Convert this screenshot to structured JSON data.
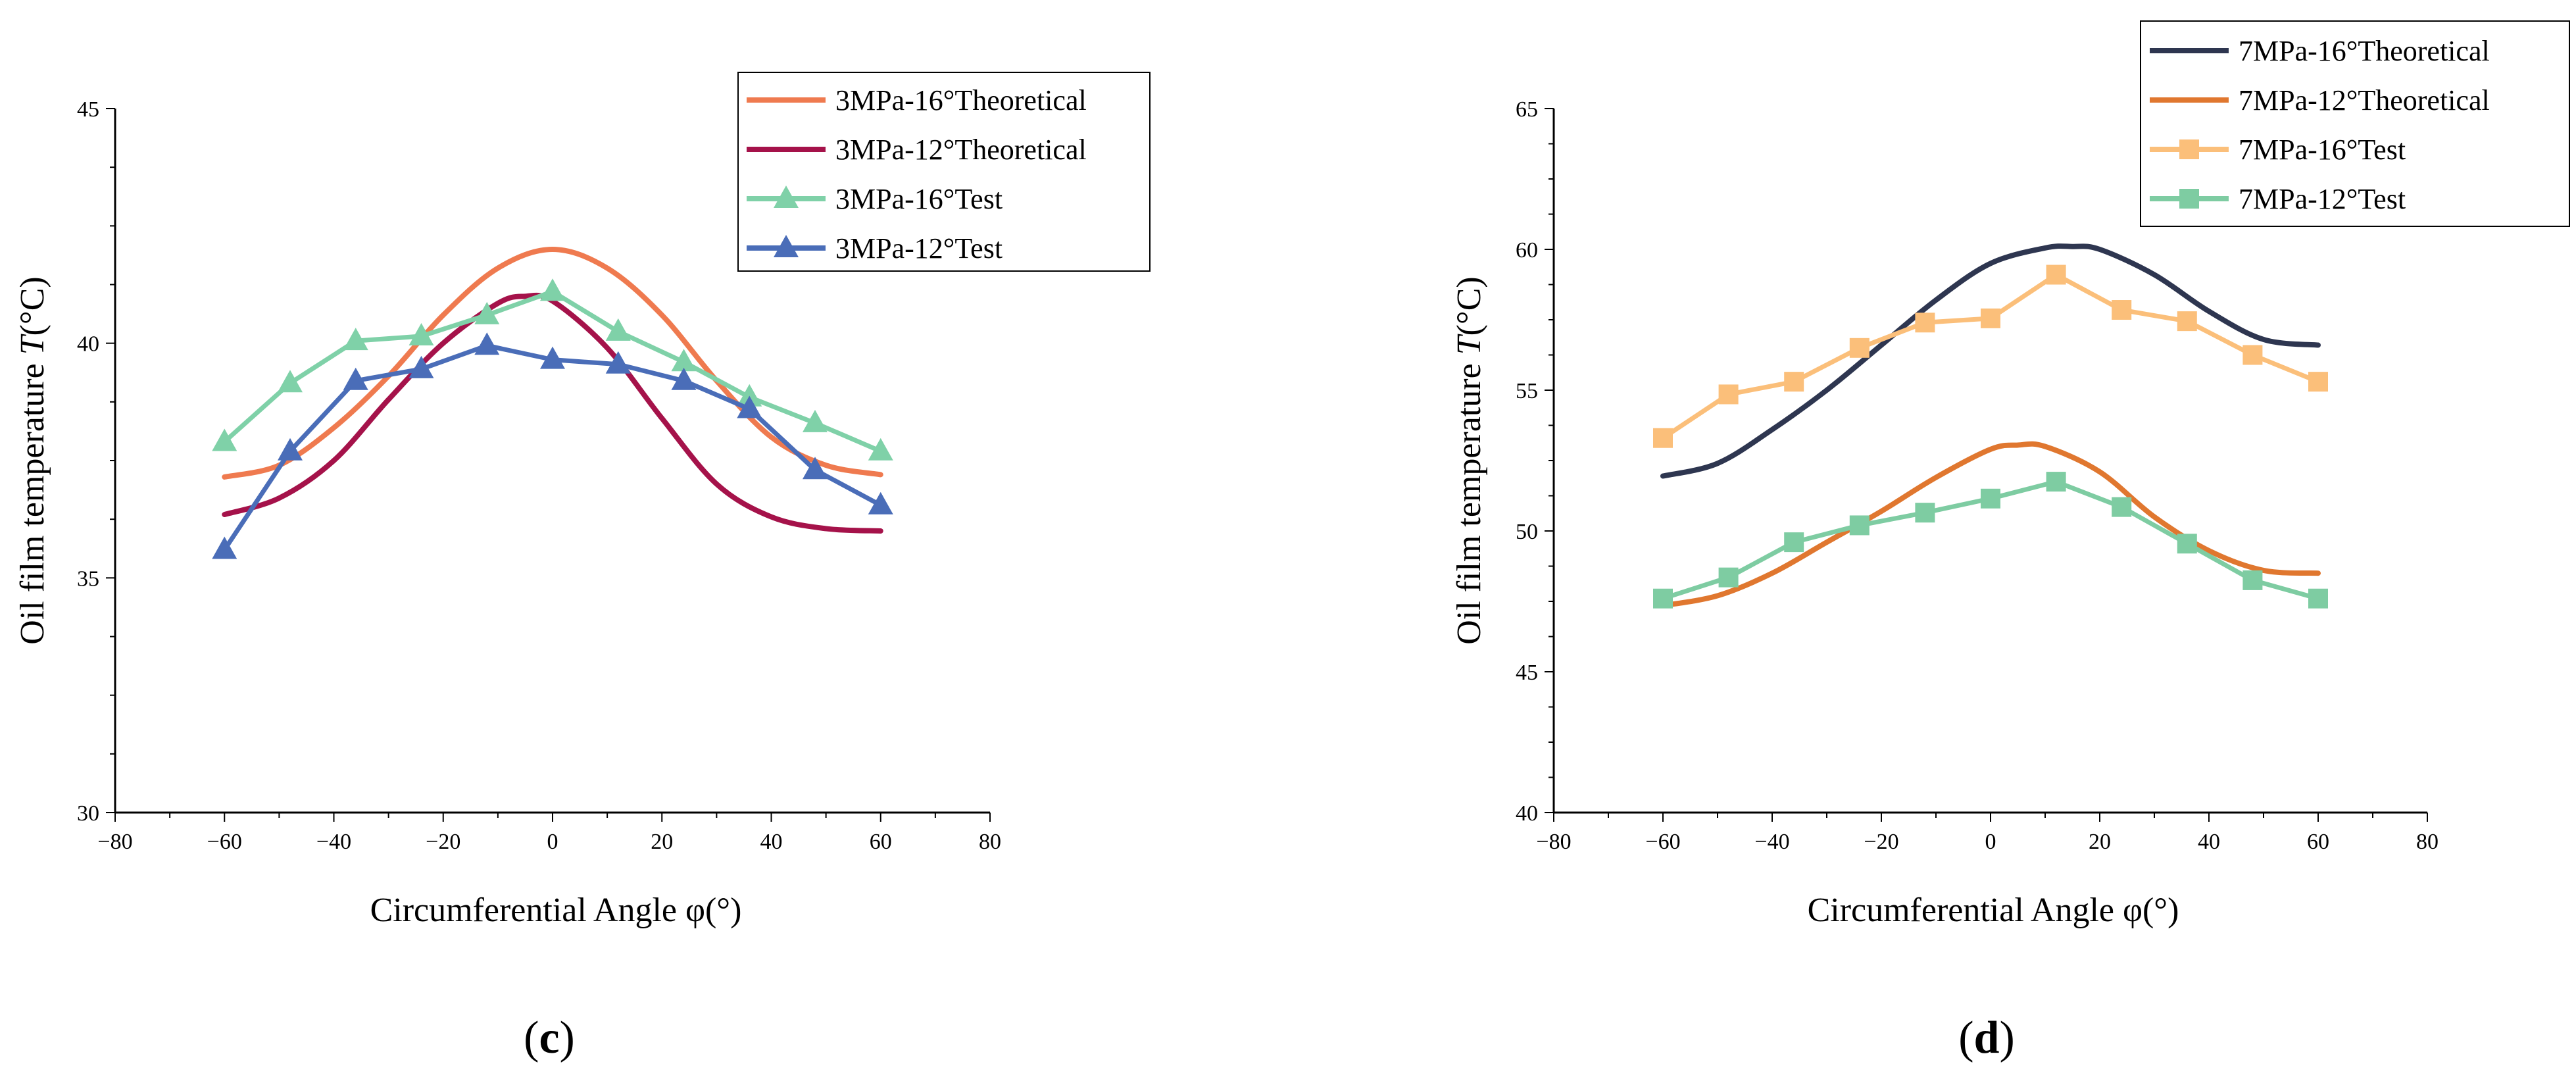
{
  "chart_data": [
    {
      "type": "line",
      "panel_label": "(c)",
      "panel_letter": "c",
      "title": "",
      "xlabel": "Circumferential Angle φ(°)",
      "ylabel_prefix": "Oil film temperature ",
      "ylabel_var": "T",
      "ylabel_suffix": "(°C)",
      "xlim": [
        -80,
        80
      ],
      "ylim": [
        30,
        45
      ],
      "xticks": [
        -80,
        -60,
        -40,
        -20,
        0,
        20,
        40,
        60,
        80
      ],
      "yticks": [
        30,
        35,
        40,
        45
      ],
      "legend_position": "top-right",
      "series": [
        {
          "name": "3MPa-16°Theoretical",
          "color": "#EF7A4F",
          "marker": "none",
          "smooth": true,
          "x": [
            -60,
            -50,
            -40,
            -30,
            -20,
            -10,
            0,
            10,
            20,
            30,
            40,
            50,
            60
          ],
          "y": [
            37.15,
            37.4,
            38.2,
            39.3,
            40.6,
            41.6,
            42.0,
            41.6,
            40.6,
            39.2,
            38.0,
            37.4,
            37.2
          ]
        },
        {
          "name": "3MPa-12°Theoretical",
          "color": "#A5124A",
          "marker": "none",
          "smooth": true,
          "x": [
            -60,
            -50,
            -40,
            -30,
            -20,
            -10,
            -5,
            0,
            10,
            20,
            30,
            40,
            50,
            60
          ],
          "y": [
            36.35,
            36.7,
            37.5,
            38.8,
            40.0,
            40.85,
            41.0,
            40.9,
            39.9,
            38.4,
            37.0,
            36.3,
            36.05,
            36.0
          ]
        },
        {
          "name": "3MPa-16°Test",
          "color": "#7FD1A8",
          "marker": "triangle",
          "smooth": false,
          "x": [
            -60,
            -48,
            -36,
            -24,
            -12,
            0,
            12,
            24,
            36,
            48,
            60
          ],
          "y": [
            37.9,
            39.15,
            40.05,
            40.15,
            40.6,
            41.1,
            40.25,
            39.6,
            38.85,
            38.3,
            37.7
          ]
        },
        {
          "name": "3MPa-12°Test",
          "color": "#4A6DB8",
          "marker": "triangle",
          "smooth": false,
          "x": [
            -60,
            -48,
            -36,
            -24,
            -12,
            0,
            12,
            24,
            36,
            48,
            60
          ],
          "y": [
            35.6,
            37.7,
            39.2,
            39.45,
            39.95,
            39.65,
            39.55,
            39.2,
            38.6,
            37.3,
            36.55
          ]
        }
      ]
    },
    {
      "type": "line",
      "panel_label": "(d)",
      "panel_letter": "d",
      "title": "",
      "xlabel": "Circumferential Angle φ(°)",
      "ylabel_prefix": "Oil film temperature ",
      "ylabel_var": "T",
      "ylabel_suffix": "(°C)",
      "xlim": [
        -80,
        80
      ],
      "ylim": [
        40,
        65
      ],
      "xticks": [
        -80,
        -60,
        -40,
        -20,
        0,
        20,
        40,
        60,
        80
      ],
      "yticks": [
        40,
        45,
        50,
        55,
        60,
        65
      ],
      "legend_position": "top-right",
      "series": [
        {
          "name": "7MPa-16°Theoretical",
          "color": "#2E3650",
          "marker": "none",
          "smooth": true,
          "x": [
            -60,
            -50,
            -40,
            -30,
            -20,
            -10,
            0,
            10,
            15,
            20,
            30,
            40,
            50,
            60
          ],
          "y": [
            51.95,
            52.4,
            53.6,
            55.0,
            56.6,
            58.2,
            59.5,
            60.05,
            60.1,
            60.0,
            59.1,
            57.8,
            56.8,
            56.6
          ]
        },
        {
          "name": "7MPa-12°Theoretical",
          "color": "#E0772F",
          "marker": "none",
          "smooth": true,
          "x": [
            -60,
            -50,
            -40,
            -30,
            -20,
            -10,
            0,
            5,
            10,
            20,
            30,
            40,
            50,
            60
          ],
          "y": [
            47.35,
            47.7,
            48.5,
            49.6,
            50.7,
            51.9,
            52.9,
            53.05,
            53.0,
            52.1,
            50.5,
            49.3,
            48.6,
            48.5
          ]
        },
        {
          "name": "7MPa-16°Test",
          "color": "#FBBF7A",
          "marker": "square",
          "smooth": false,
          "x": [
            -60,
            -48,
            -36,
            -24,
            -12,
            0,
            12,
            24,
            36,
            48,
            60
          ],
          "y": [
            53.3,
            54.85,
            55.3,
            56.5,
            57.4,
            57.55,
            59.1,
            57.85,
            57.45,
            56.25,
            55.3
          ]
        },
        {
          "name": "7MPa-12°Test",
          "color": "#7ECCA2",
          "marker": "square",
          "smooth": false,
          "x": [
            -60,
            -48,
            -36,
            -24,
            -12,
            0,
            12,
            24,
            36,
            48,
            60
          ],
          "y": [
            47.6,
            48.35,
            49.6,
            50.2,
            50.65,
            51.15,
            51.75,
            50.85,
            49.55,
            48.25,
            47.6
          ]
        }
      ]
    }
  ]
}
